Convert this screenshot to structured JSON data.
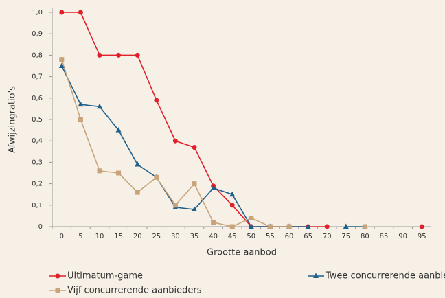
{
  "chart_data": {
    "type": "line",
    "xlabel": "Grootte aanbod",
    "ylabel": "Afwijzingratio's",
    "categories": [
      "0",
      "5",
      "10",
      "15",
      "20",
      "25",
      "30",
      "35",
      "40",
      "45",
      "50",
      "55",
      "60",
      "65",
      "70",
      "75",
      "80",
      "85",
      "90",
      "95"
    ],
    "ylim": [
      0,
      1.0
    ],
    "yticks": [
      0,
      {
        "value": 0.1,
        "label": "0,1"
      },
      {
        "value": 0.2,
        "label": "0,2"
      },
      {
        "value": 0.3,
        "label": "0,3"
      },
      {
        "value": 0.4,
        "label": "0,4"
      },
      {
        "value": 0.5,
        "label": "0,5"
      },
      {
        "value": 0.6,
        "label": "0,6"
      },
      {
        "value": 0.7,
        "label": "0,7"
      },
      {
        "value": 0.8,
        "label": "0,8"
      },
      {
        "value": 0.9,
        "label": "0,9"
      },
      {
        "value": 1.0,
        "label": "1,0"
      }
    ],
    "legend": "bottom",
    "series": [
      {
        "name": "Ultimatum-game",
        "color": "#e0202a",
        "marker": "circle",
        "values": [
          1.0,
          1.0,
          0.8,
          0.8,
          0.8,
          0.59,
          0.4,
          0.37,
          0.19,
          0.1,
          0,
          0,
          0,
          0,
          0,
          null,
          null,
          null,
          null,
          0
        ]
      },
      {
        "name": "Twee concurrerende aanbieders",
        "color": "#1f5f8b",
        "marker": "triangle",
        "values": [
          0.75,
          0.57,
          0.56,
          0.45,
          0.29,
          0.23,
          0.09,
          0.08,
          0.18,
          0.15,
          0,
          0,
          0,
          0,
          null,
          0,
          0,
          null,
          null,
          null
        ]
      },
      {
        "name": "Vijf concurrerende aanbieders",
        "color": "#c9a47a",
        "marker": "square",
        "values": [
          0.78,
          0.5,
          0.26,
          0.25,
          0.16,
          0.23,
          0.1,
          0.2,
          0.02,
          0,
          0.04,
          0,
          0,
          null,
          null,
          null,
          0,
          null,
          null,
          null
        ]
      }
    ]
  }
}
